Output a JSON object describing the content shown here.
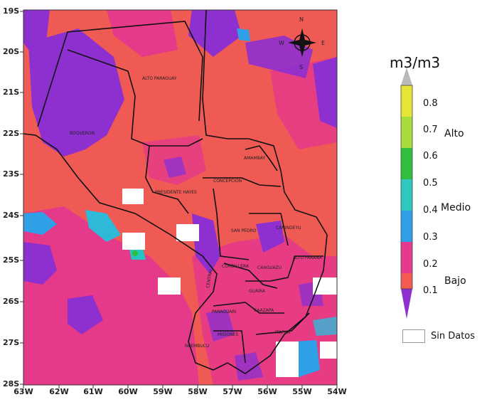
{
  "map": {
    "lat_labels": [
      "19S",
      "20S",
      "21S",
      "22S",
      "23S",
      "24S",
      "25S",
      "26S",
      "27S",
      "28S"
    ],
    "lon_labels": [
      "63W",
      "62W",
      "61W",
      "60W",
      "59W",
      "58W",
      "57W",
      "56W",
      "55W",
      "54W"
    ],
    "departments": [
      {
        "name": "ALTO PARAGUAY"
      },
      {
        "name": "BOQUERON"
      },
      {
        "name": "AMAMBAY"
      },
      {
        "name": "CONCEPCION"
      },
      {
        "name": "PRESIDENTE HAYES"
      },
      {
        "name": "SAN PEDRO"
      },
      {
        "name": "CANINDEYU"
      },
      {
        "name": "CORDILLERA"
      },
      {
        "name": "CAAGUAZU"
      },
      {
        "name": "ALTO PARANA"
      },
      {
        "name": "GUAIRA"
      },
      {
        "name": "PARAGUARI"
      },
      {
        "name": "CAAZAPA"
      },
      {
        "name": "MISIONES"
      },
      {
        "name": "ITAPUA"
      },
      {
        "name": "NEEMBUCU"
      },
      {
        "name": "CENTRAL"
      }
    ],
    "compass": {
      "n": "N",
      "s": "S",
      "w": "W",
      "e": "E"
    },
    "colors": {
      "bajo_low": "#e8357f",
      "bajo_high": "#f25a52",
      "seco": "#8e2fcf",
      "medio_low": "#2f9fe8",
      "medio_high": "#25c6c2"
    }
  },
  "legend": {
    "title": "m3/m3",
    "ticks": [
      "0.8",
      "0.7",
      "0.6",
      "0.5",
      "0.4",
      "0.3",
      "0.2",
      "0.1"
    ],
    "classes": {
      "alto": "Alto",
      "medio": "Medio",
      "bajo": "Bajo"
    },
    "no_data": "Sin Datos",
    "colors": [
      "#b9b9b9",
      "#e8e337",
      "#a8dc3c",
      "#2fbf3a",
      "#2fc7c0",
      "#2f9fe8",
      "#e63a8e",
      "#f25a52",
      "#8e2fcf"
    ]
  }
}
